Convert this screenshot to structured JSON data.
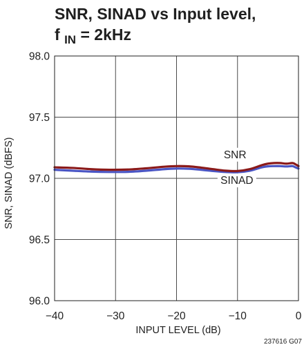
{
  "chart_data": {
    "type": "line",
    "title_line1": "SNR, SINAD vs Input level,",
    "title_line2_main": "f",
    "title_line2_sub": "IN",
    "title_line2_rest": " = 2kHz",
    "xlabel": "INPUT LEVEL (dB)",
    "ylabel": "SNR, SINAD (dBFS)",
    "xlim": [
      -40,
      0
    ],
    "ylim": [
      96.0,
      98.0
    ],
    "x_ticks": [
      -40,
      -30,
      -20,
      -10,
      0
    ],
    "x_tick_labels": [
      "−40",
      "−30",
      "−20",
      "−10",
      "0"
    ],
    "y_ticks": [
      96.0,
      96.5,
      97.0,
      97.5,
      98.0
    ],
    "y_tick_labels": [
      "96.0",
      "96.5",
      "97.0",
      "97.5",
      "98.0"
    ],
    "grid": true,
    "series": [
      {
        "name": "SNR",
        "color": "#8b1a1a",
        "x": [
          -40,
          -37,
          -34,
          -31,
          -28,
          -25,
          -22,
          -20,
          -18,
          -16,
          -14,
          -12,
          -10,
          -8,
          -6,
          -5,
          -4,
          -3,
          -2,
          -1,
          -0.5,
          0
        ],
        "y": [
          97.09,
          97.085,
          97.075,
          97.07,
          97.072,
          97.082,
          97.095,
          97.1,
          97.098,
          97.088,
          97.075,
          97.063,
          97.06,
          97.075,
          97.108,
          97.12,
          97.125,
          97.125,
          97.12,
          97.125,
          97.115,
          97.1
        ]
      },
      {
        "name": "SINAD",
        "color": "#4a55c4",
        "x": [
          -40,
          -37,
          -34,
          -31,
          -28,
          -25,
          -22,
          -20,
          -18,
          -16,
          -14,
          -12,
          -10,
          -8,
          -6,
          -5,
          -4,
          -3,
          -2,
          -1,
          -0.5,
          0
        ],
        "y": [
          97.07,
          97.062,
          97.055,
          97.052,
          97.053,
          97.062,
          97.075,
          97.08,
          97.078,
          97.07,
          97.06,
          97.052,
          97.05,
          97.062,
          97.09,
          97.098,
          97.1,
          97.1,
          97.097,
          97.1,
          97.09,
          97.08
        ]
      }
    ],
    "annotations": [
      {
        "text": "SNR",
        "x": -10.4,
        "y": 97.165
      },
      {
        "text": "SINAD",
        "x": -10.1,
        "y": 96.955
      }
    ],
    "figure_code": "237616 G07"
  }
}
